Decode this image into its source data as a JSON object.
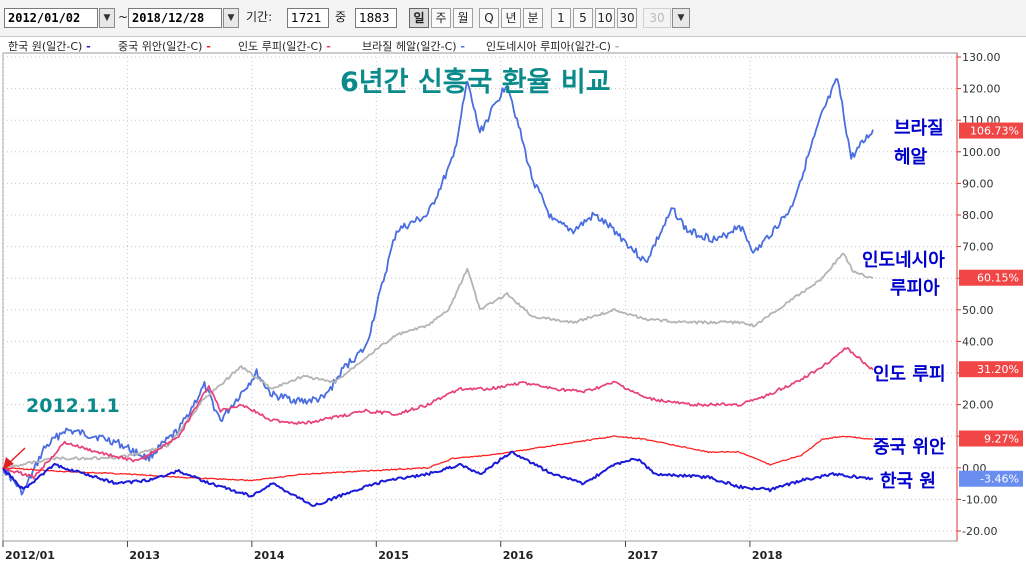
{
  "toolbar": {
    "start_date": "2012/01/02",
    "tilde": "~",
    "end_date": "2018/12/28",
    "period_label": "기간:",
    "period_value": "1721",
    "middle_label": "중",
    "middle_value": "1883",
    "periodicity_buttons": [
      "일",
      "주",
      "월",
      "Q",
      "년",
      "분"
    ],
    "active_periodicity": "일",
    "interval_buttons": [
      "1",
      "5",
      "10",
      "30"
    ],
    "disabled_value": "30"
  },
  "legend": [
    {
      "label": "한국 원(일간-C)",
      "color": "#2020d0"
    },
    {
      "label": "중국 위안(일간-C)",
      "color": "#ff2020"
    },
    {
      "label": "인도 루피(일간-C)",
      "color": "#e8407a"
    },
    {
      "label": "브라질 헤알(일간-C)",
      "color": "#4a6ee0"
    },
    {
      "label": "인도네시아 루피아(일간-C)",
      "color": "#b4b4b4"
    }
  ],
  "annotations": {
    "title": "6년간 신흥국 환율 비교",
    "start_label": "2012.1.1",
    "brazil": [
      "브라질",
      "헤알"
    ],
    "indonesia": [
      "인도네시아",
      "루피아"
    ],
    "india": "인도 루피",
    "china": "중국 위안",
    "korea": "한국 원"
  },
  "colors": {
    "korea": "#1a1ad8",
    "china": "#ff2020",
    "india": "#e8407a",
    "brazil": "#4a6ee0",
    "indonesia": "#b4b4b4",
    "annotation_text": "#0000cc",
    "title_text": "#0a8a8a",
    "axis_red": "#e03030",
    "arrow": "#e02020"
  },
  "chart_data": {
    "type": "line",
    "x_range": [
      "2012-01-02",
      "2018-12-28"
    ],
    "x_tick_labels": [
      "2012/01",
      "2013",
      "2014",
      "2015",
      "2016",
      "2017",
      "2018"
    ],
    "ylim": [
      -20,
      135
    ],
    "y_ticks": [
      "130.00",
      "120.00",
      "110.00",
      "100.00",
      "90.00",
      "80.00",
      "70.00",
      "60.00",
      "50.00",
      "40.00",
      "30.00",
      "20.00",
      "10.00",
      "0.00",
      "-10.00",
      "-20.00"
    ],
    "grid": true,
    "series": [
      {
        "name": "브라질 헤알",
        "key": "brazil",
        "last_label": "106.73%",
        "last_value": 106.73,
        "points": [
          [
            "2012-01-02",
            0
          ],
          [
            "2012-03-01",
            -8
          ],
          [
            "2012-05-01",
            6
          ],
          [
            "2012-07-01",
            12
          ],
          [
            "2012-10-01",
            10
          ],
          [
            "2012-12-01",
            8
          ],
          [
            "2013-03-01",
            3
          ],
          [
            "2013-06-01",
            12
          ],
          [
            "2013-08-15",
            26
          ],
          [
            "2013-10-01",
            15
          ],
          [
            "2014-01-15",
            30
          ],
          [
            "2014-03-01",
            23
          ],
          [
            "2014-06-01",
            21
          ],
          [
            "2014-08-01",
            22
          ],
          [
            "2014-10-01",
            32
          ],
          [
            "2014-12-01",
            38
          ],
          [
            "2015-03-01",
            75
          ],
          [
            "2015-06-01",
            80
          ],
          [
            "2015-08-15",
            98
          ],
          [
            "2015-09-25",
            122
          ],
          [
            "2015-11-01",
            106
          ],
          [
            "2016-01-20",
            122
          ],
          [
            "2016-04-01",
            92
          ],
          [
            "2016-06-01",
            78
          ],
          [
            "2016-08-01",
            75
          ],
          [
            "2016-10-01",
            80
          ],
          [
            "2016-12-01",
            75
          ],
          [
            "2017-03-01",
            65
          ],
          [
            "2017-05-20",
            82
          ],
          [
            "2017-07-01",
            75
          ],
          [
            "2017-10-01",
            72
          ],
          [
            "2017-12-01",
            77
          ],
          [
            "2018-01-15",
            68
          ],
          [
            "2018-05-01",
            82
          ],
          [
            "2018-08-01",
            112
          ],
          [
            "2018-09-15",
            123
          ],
          [
            "2018-10-25",
            98
          ],
          [
            "2018-12-28",
            107
          ]
        ]
      },
      {
        "name": "인도네시아 루피아",
        "key": "indonesia",
        "last_label": "60.15%",
        "last_value": 60.15,
        "points": [
          [
            "2012-01-02",
            0
          ],
          [
            "2012-06-01",
            3
          ],
          [
            "2012-12-01",
            3
          ],
          [
            "2013-05-01",
            7
          ],
          [
            "2013-08-15",
            22
          ],
          [
            "2013-12-01",
            32
          ],
          [
            "2014-03-01",
            25
          ],
          [
            "2014-06-01",
            29
          ],
          [
            "2014-09-01",
            27
          ],
          [
            "2014-12-01",
            35
          ],
          [
            "2015-03-01",
            42
          ],
          [
            "2015-06-01",
            45
          ],
          [
            "2015-08-01",
            50
          ],
          [
            "2015-09-25",
            63
          ],
          [
            "2015-11-01",
            50
          ],
          [
            "2016-01-20",
            55
          ],
          [
            "2016-04-01",
            48
          ],
          [
            "2016-08-01",
            46
          ],
          [
            "2016-12-01",
            50
          ],
          [
            "2017-03-01",
            47
          ],
          [
            "2017-07-01",
            46
          ],
          [
            "2017-12-01",
            46
          ],
          [
            "2018-01-15",
            45
          ],
          [
            "2018-05-01",
            53
          ],
          [
            "2018-08-01",
            60
          ],
          [
            "2018-10-01",
            68
          ],
          [
            "2018-11-01",
            62
          ],
          [
            "2018-12-28",
            60
          ]
        ]
      },
      {
        "name": "인도 루피",
        "key": "india",
        "last_label": "31.20%",
        "last_value": 31.2,
        "points": [
          [
            "2012-01-02",
            0
          ],
          [
            "2012-04-01",
            -3
          ],
          [
            "2012-07-01",
            8
          ],
          [
            "2012-10-01",
            5
          ],
          [
            "2013-02-01",
            2
          ],
          [
            "2013-06-01",
            10
          ],
          [
            "2013-08-28",
            26
          ],
          [
            "2013-10-01",
            18
          ],
          [
            "2013-12-01",
            20
          ],
          [
            "2014-03-01",
            15
          ],
          [
            "2014-06-01",
            14
          ],
          [
            "2014-09-01",
            16
          ],
          [
            "2014-12-01",
            18
          ],
          [
            "2015-03-01",
            17
          ],
          [
            "2015-06-01",
            20
          ],
          [
            "2015-09-01",
            25
          ],
          [
            "2015-12-01",
            25
          ],
          [
            "2016-03-01",
            27
          ],
          [
            "2016-06-01",
            25
          ],
          [
            "2016-09-01",
            24
          ],
          [
            "2016-12-01",
            27
          ],
          [
            "2017-03-01",
            22
          ],
          [
            "2017-07-01",
            20
          ],
          [
            "2017-12-01",
            20
          ],
          [
            "2018-02-01",
            22
          ],
          [
            "2018-06-01",
            28
          ],
          [
            "2018-08-15",
            33
          ],
          [
            "2018-10-10",
            38
          ],
          [
            "2018-12-28",
            31
          ]
        ]
      },
      {
        "name": "중국 위안",
        "key": "china",
        "last_label": "9.27%",
        "last_value": 9.27,
        "points": [
          [
            "2012-01-02",
            0
          ],
          [
            "2012-06-01",
            -1
          ],
          [
            "2013-01-01",
            -2
          ],
          [
            "2013-06-01",
            -3
          ],
          [
            "2014-01-01",
            -4
          ],
          [
            "2014-06-01",
            -2
          ],
          [
            "2014-12-01",
            -1
          ],
          [
            "2015-06-01",
            0
          ],
          [
            "2015-08-15",
            3
          ],
          [
            "2015-12-01",
            4
          ],
          [
            "2016-06-01",
            7
          ],
          [
            "2016-12-01",
            10
          ],
          [
            "2017-03-01",
            9
          ],
          [
            "2017-09-01",
            5
          ],
          [
            "2017-12-01",
            5
          ],
          [
            "2018-03-01",
            1
          ],
          [
            "2018-06-01",
            4
          ],
          [
            "2018-08-01",
            9
          ],
          [
            "2018-10-01",
            10
          ],
          [
            "2018-12-28",
            9
          ]
        ]
      },
      {
        "name": "한국 원",
        "key": "korea",
        "last_label": "-3.46%",
        "last_value": -3.46,
        "points": [
          [
            "2012-01-02",
            0
          ],
          [
            "2012-03-01",
            -7
          ],
          [
            "2012-06-01",
            1
          ],
          [
            "2012-12-01",
            -5
          ],
          [
            "2013-03-01",
            -4
          ],
          [
            "2013-06-01",
            -1
          ],
          [
            "2013-09-01",
            -5
          ],
          [
            "2014-01-01",
            -9
          ],
          [
            "2014-03-01",
            -5
          ],
          [
            "2014-07-01",
            -12
          ],
          [
            "2014-11-01",
            -7
          ],
          [
            "2015-02-01",
            -4
          ],
          [
            "2015-06-01",
            -2
          ],
          [
            "2015-09-01",
            1
          ],
          [
            "2015-11-01",
            -2
          ],
          [
            "2016-02-01",
            5
          ],
          [
            "2016-06-01",
            -2
          ],
          [
            "2016-09-01",
            -5
          ],
          [
            "2016-12-01",
            1
          ],
          [
            "2017-02-01",
            3
          ],
          [
            "2017-04-01",
            -2
          ],
          [
            "2017-09-01",
            -3
          ],
          [
            "2017-12-01",
            -6
          ],
          [
            "2018-03-01",
            -7
          ],
          [
            "2018-06-01",
            -4
          ],
          [
            "2018-09-01",
            -2
          ],
          [
            "2018-12-28",
            -3.5
          ]
        ]
      }
    ]
  }
}
